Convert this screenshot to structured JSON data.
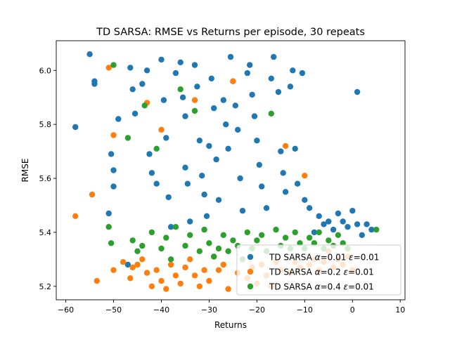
{
  "chart_data": {
    "type": "scatter",
    "title": "TD SARSA: RMSE vs Returns per episode, 30 repeats",
    "xlabel": "Returns",
    "ylabel": "RMSE",
    "xlim": [
      -62,
      11
    ],
    "ylim": [
      5.15,
      6.11
    ],
    "xticks": [
      -60,
      -50,
      -40,
      -30,
      -20,
      -10,
      0,
      10
    ],
    "xtick_labels": [
      "−60",
      "−50",
      "−40",
      "−30",
      "−20",
      "−10",
      "0",
      "10"
    ],
    "yticks": [
      5.2,
      5.4,
      5.6,
      5.8,
      6.0
    ],
    "ytick_labels": [
      "5.2",
      "5.4",
      "5.6",
      "5.8",
      "6.0"
    ],
    "grid": false,
    "legend_position": "lower right",
    "series": [
      {
        "name": "TD SARSA α=0.01 ε=0.01",
        "label_parts": [
          "TD SARSA ",
          "α",
          "=0.01 ",
          "ε",
          "=0.01"
        ],
        "color": "#1f77b4",
        "points": [
          [
            -58,
            5.79
          ],
          [
            -55,
            6.06
          ],
          [
            -54,
            5.96
          ],
          [
            -54,
            5.95
          ],
          [
            -51,
            5.47
          ],
          [
            -50.5,
            5.69
          ],
          [
            -50,
            5.63
          ],
          [
            -50,
            5.57
          ],
          [
            -49,
            5.82
          ],
          [
            -47,
            5.28
          ],
          [
            -46.5,
            6.01
          ],
          [
            -46,
            5.93
          ],
          [
            -45.5,
            5.84
          ],
          [
            -44,
            5.95
          ],
          [
            -43,
            6.0
          ],
          [
            -42.5,
            5.69
          ],
          [
            -42,
            5.62
          ],
          [
            -41,
            5.58
          ],
          [
            -40,
            6.04
          ],
          [
            -39.5,
            5.89
          ],
          [
            -39,
            5.75
          ],
          [
            -38.5,
            5.53
          ],
          [
            -38,
            5.42
          ],
          [
            -37,
            5.99
          ],
          [
            -36,
            6.03
          ],
          [
            -35.5,
            5.9
          ],
          [
            -35,
            5.83
          ],
          [
            -35,
            5.64
          ],
          [
            -34.5,
            5.58
          ],
          [
            -34,
            5.44
          ],
          [
            -33,
            6.02
          ],
          [
            -32.5,
            5.94
          ],
          [
            -32,
            5.74
          ],
          [
            -31.5,
            5.61
          ],
          [
            -31,
            5.54
          ],
          [
            -30.5,
            5.46
          ],
          [
            -30,
            5.72
          ],
          [
            -29.5,
            5.97
          ],
          [
            -29,
            5.86
          ],
          [
            -28.5,
            5.67
          ],
          [
            -28,
            5.52
          ],
          [
            -27,
            5.89
          ],
          [
            -26.5,
            5.8
          ],
          [
            -26,
            5.71
          ],
          [
            -25.5,
            6.05
          ],
          [
            -25,
            5.96
          ],
          [
            -24.5,
            5.87
          ],
          [
            -24,
            5.78
          ],
          [
            -23.5,
            5.6
          ],
          [
            -23,
            5.48
          ],
          [
            -22,
            5.99
          ],
          [
            -21.5,
            6.02
          ],
          [
            -21,
            5.91
          ],
          [
            -20.5,
            5.83
          ],
          [
            -20,
            5.74
          ],
          [
            -19.5,
            5.65
          ],
          [
            -19,
            5.57
          ],
          [
            -18,
            5.49
          ],
          [
            -17,
            5.97
          ],
          [
            -16.5,
            6.05
          ],
          [
            -15.5,
            5.92
          ],
          [
            -15,
            5.7
          ],
          [
            -14.5,
            5.62
          ],
          [
            -14,
            5.55
          ],
          [
            -13,
            5.94
          ],
          [
            -12.5,
            6.0
          ],
          [
            -12,
            5.71
          ],
          [
            -11.5,
            5.58
          ],
          [
            -10.5,
            5.99
          ],
          [
            -10,
            5.52
          ],
          [
            -9,
            5.49
          ],
          [
            -8,
            5.4
          ],
          [
            -7,
            5.46
          ],
          [
            -6,
            5.43
          ],
          [
            -5,
            5.44
          ],
          [
            -4,
            5.41
          ],
          [
            -3,
            5.47
          ],
          [
            -2,
            5.44
          ],
          [
            -1,
            5.42
          ],
          [
            0,
            5.48
          ],
          [
            1,
            5.92
          ],
          [
            1,
            5.43
          ],
          [
            2,
            5.39
          ],
          [
            3,
            5.43
          ],
          [
            4,
            5.41
          ]
        ]
      },
      {
        "name": "TD SARSA α=0.2 ε=0.01",
        "label_parts": [
          "TD SARSA ",
          "α",
          "=0.2 ",
          "ε",
          "=0.01"
        ],
        "color": "#ff7f0e",
        "points": [
          [
            -58,
            5.46
          ],
          [
            -54.5,
            5.54
          ],
          [
            -53.5,
            5.22
          ],
          [
            -51,
            6.01
          ],
          [
            -50,
            5.76
          ],
          [
            -50,
            5.26
          ],
          [
            -48,
            5.29
          ],
          [
            -46.5,
            5.23
          ],
          [
            -46,
            5.27
          ],
          [
            -45,
            5.28
          ],
          [
            -44,
            5.3
          ],
          [
            -43,
            5.25
          ],
          [
            -43,
            5.88
          ],
          [
            -42,
            5.2
          ],
          [
            -41,
            5.26
          ],
          [
            -40,
            5.78
          ],
          [
            -40,
            5.22
          ],
          [
            -39,
            5.19
          ],
          [
            -38,
            5.28
          ],
          [
            -37,
            5.24
          ],
          [
            -36,
            5.21
          ],
          [
            -35,
            5.27
          ],
          [
            -34,
            5.3
          ],
          [
            -33,
            5.89
          ],
          [
            -33,
            5.24
          ],
          [
            -32,
            5.2
          ],
          [
            -31,
            5.26
          ],
          [
            -30,
            5.22
          ],
          [
            -29,
            5.31
          ],
          [
            -28,
            5.26
          ],
          [
            -27,
            5.28
          ],
          [
            -26,
            5.19
          ],
          [
            -25,
            5.96
          ],
          [
            -24,
            5.25
          ],
          [
            -23,
            5.3
          ],
          [
            -22,
            5.23
          ],
          [
            -21,
            5.27
          ],
          [
            -20,
            5.21
          ],
          [
            -19,
            5.28
          ],
          [
            -18,
            5.24
          ],
          [
            -17,
            5.2
          ],
          [
            -16,
            5.29
          ],
          [
            -15,
            5.26
          ],
          [
            -14,
            5.72
          ],
          [
            -13,
            5.25
          ],
          [
            -12,
            5.29
          ],
          [
            -11,
            5.27
          ],
          [
            -10,
            5.61
          ],
          [
            -9,
            5.28
          ],
          [
            -8,
            5.3
          ],
          [
            -7,
            5.26
          ],
          [
            -6,
            5.29
          ],
          [
            -5,
            5.33
          ],
          [
            -4,
            5.27
          ],
          [
            -3,
            5.3
          ],
          [
            -2,
            5.28
          ],
          [
            -1,
            5.31
          ],
          [
            0,
            5.26
          ]
        ]
      },
      {
        "name": "TD SARSA α=0.4 ε=0.01",
        "label_parts": [
          "TD SARSA ",
          "α",
          "=0.4 ",
          "ε",
          "=0.01"
        ],
        "color": "#2ca02c",
        "points": [
          [
            -51,
            5.42
          ],
          [
            -50.5,
            5.36
          ],
          [
            -50,
            6.02
          ],
          [
            -47,
            5.75
          ],
          [
            -46,
            5.37
          ],
          [
            -45,
            5.33
          ],
          [
            -44,
            5.35
          ],
          [
            -43.5,
            5.87
          ],
          [
            -42,
            5.4
          ],
          [
            -41,
            5.71
          ],
          [
            -40,
            5.34
          ],
          [
            -39,
            5.38
          ],
          [
            -38,
            5.3
          ],
          [
            -37,
            5.42
          ],
          [
            -36,
            5.93
          ],
          [
            -35,
            5.35
          ],
          [
            -34,
            5.39
          ],
          [
            -33,
            5.85
          ],
          [
            -32,
            5.33
          ],
          [
            -31,
            5.41
          ],
          [
            -30,
            5.36
          ],
          [
            -29,
            5.31
          ],
          [
            -28,
            5.34
          ],
          [
            -27,
            5.39
          ],
          [
            -26,
            5.33
          ],
          [
            -25,
            5.37
          ],
          [
            -24,
            5.35
          ],
          [
            -23,
            5.3
          ],
          [
            -22,
            5.4
          ],
          [
            -21,
            5.34
          ],
          [
            -20,
            5.37
          ],
          [
            -19,
            5.39
          ],
          [
            -18,
            5.33
          ],
          [
            -17,
            5.84
          ],
          [
            -16,
            5.41
          ],
          [
            -15,
            5.35
          ],
          [
            -14,
            5.38
          ],
          [
            -13,
            5.34
          ],
          [
            -12,
            5.4
          ],
          [
            -11,
            5.36
          ],
          [
            -10,
            5.34
          ],
          [
            -9,
            5.38
          ],
          [
            -8,
            5.36
          ],
          [
            -7,
            5.4
          ],
          [
            -6,
            5.34
          ],
          [
            -5,
            5.37
          ],
          [
            -4,
            5.35
          ],
          [
            -3,
            5.39
          ],
          [
            -2,
            5.36
          ],
          [
            -1,
            5.34
          ],
          [
            5,
            5.41
          ]
        ]
      }
    ]
  }
}
